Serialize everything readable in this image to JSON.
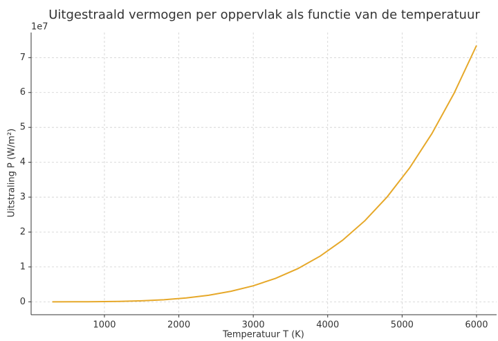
{
  "chart_data": {
    "type": "line",
    "title": "Uitgestraald vermogen per oppervlak als functie van de temperatuur",
    "x_label": "Temperatuur T (K)",
    "y_label": "Uitstraling P (W/m²)",
    "y_offset_label": "1e7",
    "x": [
      300,
      600,
      900,
      1200,
      1500,
      1800,
      2100,
      2400,
      2700,
      3000,
      3300,
      3600,
      3900,
      4200,
      4500,
      4800,
      5100,
      5400,
      5700,
      6000
    ],
    "series": [
      {
        "color": "#e6a829",
        "values": [
          0.0,
          0.0007,
          0.0037,
          0.0118,
          0.0287,
          0.0595,
          0.1103,
          0.1881,
          0.3013,
          0.4593,
          0.6724,
          0.9523,
          1.3117,
          1.7643,
          2.3251,
          3.0099,
          3.8359,
          4.8212,
          5.9853,
          7.3483
        ]
      }
    ],
    "xlim": [
      15,
      6270
    ],
    "xticks": [
      1000,
      2000,
      3000,
      4000,
      5000,
      6000
    ],
    "ylim": [
      -0.37,
      7.72
    ],
    "yticks": [
      0,
      1,
      2,
      3,
      4,
      5,
      6,
      7
    ],
    "grid": true
  }
}
